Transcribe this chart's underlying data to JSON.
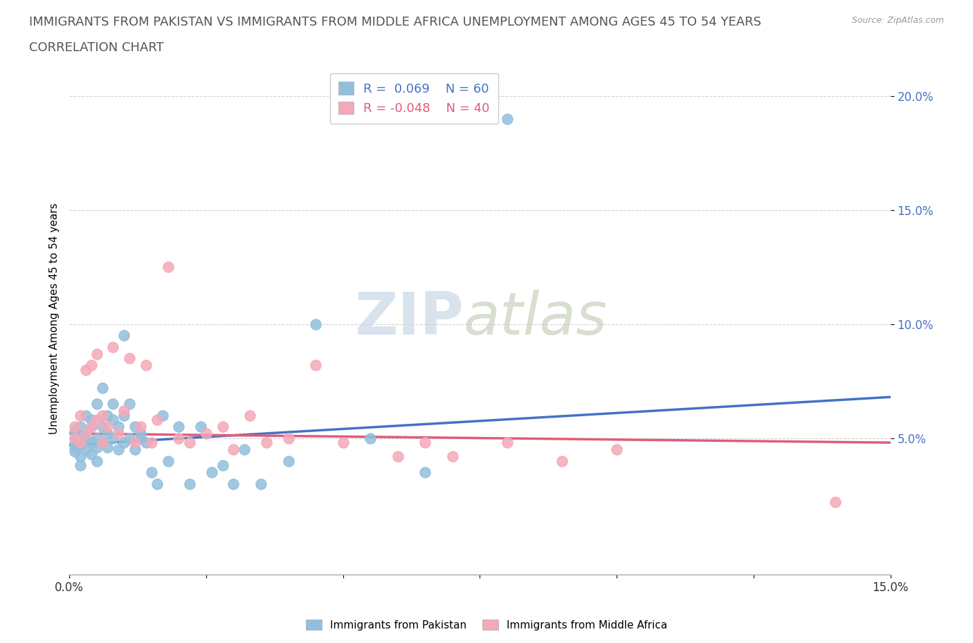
{
  "title_line1": "IMMIGRANTS FROM PAKISTAN VS IMMIGRANTS FROM MIDDLE AFRICA UNEMPLOYMENT AMONG AGES 45 TO 54 YEARS",
  "title_line2": "CORRELATION CHART",
  "source_text": "Source: ZipAtlas.com",
  "ylabel": "Unemployment Among Ages 45 to 54 years",
  "xlim": [
    0.0,
    0.15
  ],
  "ylim": [
    -0.01,
    0.215
  ],
  "xticks": [
    0.0,
    0.025,
    0.05,
    0.075,
    0.1,
    0.125,
    0.15
  ],
  "xtick_labels": [
    "0.0%",
    "",
    "",
    "",
    "",
    "",
    "15.0%"
  ],
  "yticks": [
    0.05,
    0.1,
    0.15,
    0.2
  ],
  "ytick_labels": [
    "5.0%",
    "10.0%",
    "15.0%",
    "20.0%"
  ],
  "r_pakistan": 0.069,
  "n_pakistan": 60,
  "r_middle_africa": -0.048,
  "n_middle_africa": 40,
  "color_pakistan": "#92BFDC",
  "color_middle_africa": "#F4A9B8",
  "line_color_pakistan": "#4472C4",
  "line_color_middle_africa": "#E05C7A",
  "watermark_zip": "ZIP",
  "watermark_atlas": "atlas",
  "legend_label_pakistan": "Immigrants from Pakistan",
  "legend_label_middle_africa": "Immigrants from Middle Africa",
  "pakistan_x": [
    0.001,
    0.001,
    0.001,
    0.001,
    0.001,
    0.002,
    0.002,
    0.002,
    0.002,
    0.002,
    0.003,
    0.003,
    0.003,
    0.003,
    0.004,
    0.004,
    0.004,
    0.004,
    0.005,
    0.005,
    0.005,
    0.005,
    0.006,
    0.006,
    0.006,
    0.007,
    0.007,
    0.007,
    0.008,
    0.008,
    0.008,
    0.009,
    0.009,
    0.01,
    0.01,
    0.01,
    0.011,
    0.011,
    0.012,
    0.012,
    0.013,
    0.013,
    0.014,
    0.015,
    0.016,
    0.017,
    0.018,
    0.02,
    0.022,
    0.024,
    0.026,
    0.028,
    0.03,
    0.032,
    0.035,
    0.04,
    0.045,
    0.055,
    0.065,
    0.08
  ],
  "pakistan_y": [
    0.046,
    0.05,
    0.053,
    0.044,
    0.048,
    0.042,
    0.047,
    0.051,
    0.055,
    0.038,
    0.05,
    0.045,
    0.06,
    0.052,
    0.048,
    0.055,
    0.043,
    0.058,
    0.046,
    0.05,
    0.04,
    0.065,
    0.055,
    0.048,
    0.072,
    0.052,
    0.046,
    0.06,
    0.05,
    0.058,
    0.065,
    0.045,
    0.055,
    0.048,
    0.095,
    0.06,
    0.05,
    0.065,
    0.055,
    0.045,
    0.05,
    0.052,
    0.048,
    0.035,
    0.03,
    0.06,
    0.04,
    0.055,
    0.03,
    0.055,
    0.035,
    0.038,
    0.03,
    0.045,
    0.03,
    0.04,
    0.1,
    0.05,
    0.035,
    0.19
  ],
  "middle_africa_x": [
    0.001,
    0.001,
    0.002,
    0.002,
    0.003,
    0.003,
    0.004,
    0.004,
    0.005,
    0.005,
    0.006,
    0.006,
    0.007,
    0.008,
    0.009,
    0.01,
    0.011,
    0.012,
    0.013,
    0.014,
    0.015,
    0.016,
    0.018,
    0.02,
    0.022,
    0.025,
    0.028,
    0.03,
    0.033,
    0.036,
    0.04,
    0.045,
    0.05,
    0.06,
    0.065,
    0.07,
    0.08,
    0.09,
    0.1,
    0.14
  ],
  "middle_africa_y": [
    0.05,
    0.055,
    0.048,
    0.06,
    0.052,
    0.08,
    0.055,
    0.082,
    0.058,
    0.087,
    0.06,
    0.048,
    0.055,
    0.09,
    0.052,
    0.062,
    0.085,
    0.048,
    0.055,
    0.082,
    0.048,
    0.058,
    0.125,
    0.05,
    0.048,
    0.052,
    0.055,
    0.045,
    0.06,
    0.048,
    0.05,
    0.082,
    0.048,
    0.042,
    0.048,
    0.042,
    0.048,
    0.04,
    0.045,
    0.022
  ],
  "background_color": "#FFFFFF",
  "grid_color": "#D0D0D0",
  "title_fontsize": 13,
  "axis_label_fontsize": 11,
  "tick_fontsize": 12
}
